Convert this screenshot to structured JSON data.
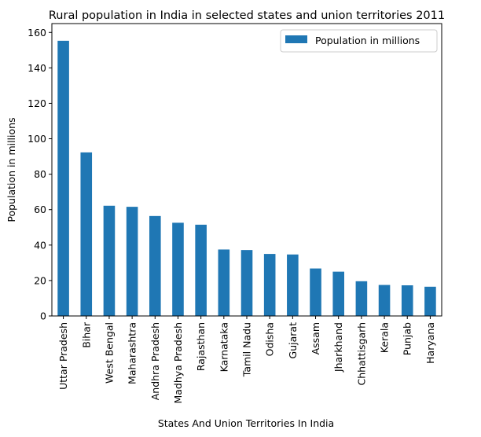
{
  "chart_data": {
    "type": "bar",
    "title": "Rural population in India in selected states and union territories 2011",
    "xlabel": "States And Union Territories In India",
    "ylabel": "Population in millions",
    "ylim": [
      0,
      165
    ],
    "yticks": [
      0,
      20,
      40,
      60,
      80,
      100,
      120,
      140,
      160
    ],
    "categories": [
      "Uttar Pradesh",
      "Bihar",
      "West Bengal",
      "Maharashtra",
      "Andhra Pradesh",
      "Madhya Pradesh",
      "Rajasthan",
      "Karnataka",
      "Tamil Nadu",
      "Odisha",
      "Gujarat",
      "Assam",
      "Jharkhand",
      "Chhattisgarh",
      "Kerala",
      "Punjab",
      "Haryana"
    ],
    "series": [
      {
        "name": "Population in millions",
        "color": "#1f77b4",
        "values": [
          155.3,
          92.3,
          62.2,
          61.6,
          56.4,
          52.6,
          51.5,
          37.5,
          37.2,
          35.0,
          34.7,
          26.8,
          25.0,
          19.6,
          17.5,
          17.3,
          16.5
        ]
      }
    ],
    "legend": {
      "position": "top-right"
    },
    "grid": false
  }
}
